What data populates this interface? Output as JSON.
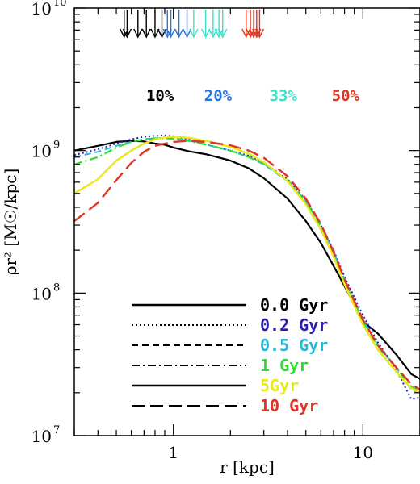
{
  "chart_data": {
    "type": "line",
    "title": "",
    "xlabel": "r [kpc]",
    "ylabel": "ρr² [M☉/kpc]",
    "xscale": "log",
    "yscale": "log",
    "xlim": [
      0.3,
      20
    ],
    "ylim": [
      10000000,
      10000000000
    ],
    "x_tick_labels": [
      {
        "value": 1,
        "label": "1"
      },
      {
        "value": 10,
        "label": "10"
      }
    ],
    "y_tick_labels": [
      {
        "value": 10000000,
        "base": "10",
        "exp": "7"
      },
      {
        "value": 100000000,
        "base": "10",
        "exp": "8"
      },
      {
        "value": 1000000000,
        "base": "10",
        "exp": "9"
      },
      {
        "value": 10000000000,
        "base": "10",
        "exp": "10"
      }
    ],
    "legend_placement": "bottom-center",
    "series": [
      {
        "name": "0.0 Gyr",
        "color": "#000000",
        "dash": "solid",
        "width": 2.2,
        "x": [
          0.3,
          0.4,
          0.5,
          0.6,
          0.7,
          0.8,
          0.9,
          1.0,
          1.2,
          1.5,
          2,
          2.5,
          3,
          4,
          5,
          6,
          7,
          8,
          10,
          12,
          15,
          18,
          20
        ],
        "y": [
          1000000000.0,
          1080000000.0,
          1150000000.0,
          1170000000.0,
          1160000000.0,
          1120000000.0,
          1100000000.0,
          1050000000.0,
          990000000.0,
          940000000.0,
          850000000.0,
          750000000.0,
          640000000.0,
          460000000.0,
          320000000.0,
          225000000.0,
          155000000.0,
          112000000.0,
          63000000.0,
          52000000.0,
          37000000.0,
          27000000.0,
          25000000.0
        ]
      },
      {
        "name": "0.2 Gyr",
        "color": "#2b1fb5",
        "dash": "dotted",
        "width": 2.0,
        "x": [
          0.3,
          0.4,
          0.5,
          0.6,
          0.7,
          0.8,
          0.9,
          1.0,
          1.2,
          1.5,
          2,
          2.5,
          3,
          4,
          5,
          6,
          7,
          8,
          10,
          12,
          15,
          18,
          20
        ],
        "y": [
          930000000.0,
          1020000000.0,
          1120000000.0,
          1200000000.0,
          1250000000.0,
          1270000000.0,
          1280000000.0,
          1260000000.0,
          1200000000.0,
          1100000000.0,
          1000000000.0,
          920000000.0,
          820000000.0,
          630000000.0,
          450000000.0,
          300000000.0,
          200000000.0,
          130000000.0,
          70000000.0,
          45000000.0,
          29000000.0,
          18000000.0,
          18500000.0
        ]
      },
      {
        "name": "0.5 Gyr",
        "color": "#25b8d8",
        "dash": "dashed",
        "width": 2.0,
        "x": [
          0.3,
          0.4,
          0.5,
          0.6,
          0.7,
          0.8,
          0.9,
          1.0,
          1.2,
          1.5,
          2,
          2.5,
          3,
          4,
          5,
          6,
          7,
          8,
          10,
          12,
          15,
          18,
          20
        ],
        "y": [
          900000000.0,
          980000000.0,
          1080000000.0,
          1150000000.0,
          1200000000.0,
          1220000000.0,
          1230000000.0,
          1220000000.0,
          1180000000.0,
          1100000000.0,
          1000000000.0,
          900000000.0,
          800000000.0,
          610000000.0,
          440000000.0,
          300000000.0,
          195000000.0,
          125000000.0,
          65000000.0,
          43000000.0,
          30000000.0,
          21000000.0,
          20000000.0
        ]
      },
      {
        "name": "1 Gyr",
        "color": "#2fdc2f",
        "dash": "dashdot",
        "width": 2.2,
        "x": [
          0.3,
          0.4,
          0.5,
          0.6,
          0.7,
          0.8,
          0.9,
          1.0,
          1.2,
          1.5,
          2,
          2.5,
          3,
          4,
          5,
          6,
          7,
          8,
          10,
          12,
          15,
          18,
          20
        ],
        "y": [
          800000000.0,
          900000000.0,
          1050000000.0,
          1150000000.0,
          1200000000.0,
          1220000000.0,
          1220000000.0,
          1210000000.0,
          1170000000.0,
          1100000000.0,
          1000000000.0,
          900000000.0,
          810000000.0,
          620000000.0,
          440000000.0,
          295000000.0,
          190000000.0,
          120000000.0,
          63000000.0,
          42000000.0,
          30000000.0,
          22000000.0,
          21000000.0
        ]
      },
      {
        "name": "5Gyr",
        "color": "#e8e81a",
        "dash": "solid",
        "width": 2.4,
        "x": [
          0.3,
          0.4,
          0.5,
          0.6,
          0.7,
          0.8,
          0.9,
          1.0,
          1.2,
          1.5,
          2,
          2.5,
          3,
          4,
          5,
          6,
          7,
          8,
          10,
          12,
          15,
          18,
          20
        ],
        "y": [
          500000000.0,
          630000000.0,
          850000000.0,
          1000000000.0,
          1120000000.0,
          1200000000.0,
          1240000000.0,
          1250000000.0,
          1230000000.0,
          1170000000.0,
          1060000000.0,
          950000000.0,
          830000000.0,
          610000000.0,
          420000000.0,
          280000000.0,
          180000000.0,
          115000000.0,
          60000000.0,
          40000000.0,
          28000000.0,
          21500000.0,
          20000000.0
        ]
      },
      {
        "name": "10 Gyr",
        "color": "#e03522",
        "dash": "longdash",
        "width": 2.4,
        "x": [
          0.3,
          0.4,
          0.5,
          0.6,
          0.7,
          0.8,
          0.9,
          1.0,
          1.2,
          1.5,
          2,
          2.5,
          3,
          4,
          5,
          6,
          7,
          8,
          10,
          12,
          15,
          18,
          20
        ],
        "y": [
          320000000.0,
          430000000.0,
          620000000.0,
          820000000.0,
          980000000.0,
          1080000000.0,
          1120000000.0,
          1150000000.0,
          1170000000.0,
          1150000000.0,
          1090000000.0,
          1000000000.0,
          890000000.0,
          660000000.0,
          460000000.0,
          305000000.0,
          195000000.0,
          125000000.0,
          65000000.0,
          43000000.0,
          30000000.0,
          23000000.0,
          21000000.0
        ]
      }
    ],
    "annotations": [
      {
        "text": "10%",
        "color": "#000000",
        "x": 0.85
      },
      {
        "text": "20%",
        "color": "#2a74de",
        "x": 1.72
      },
      {
        "text": "33%",
        "color": "#3fe0c8",
        "x": 3.8
      },
      {
        "text": "50%",
        "color": "#e03522",
        "x": 8.1
      }
    ],
    "arrows": [
      {
        "color": "#000000",
        "x": [
          0.55,
          0.57,
          0.65,
          0.72,
          0.8,
          0.87
        ]
      },
      {
        "color": "#2a74de",
        "x": [
          0.93,
          0.97,
          1.07,
          1.18
        ]
      },
      {
        "color": "#3fe0c8",
        "x": [
          1.28,
          1.48,
          1.62,
          1.74,
          1.82
        ]
      },
      {
        "color": "#e03522",
        "x": [
          2.42,
          2.55,
          2.65,
          2.75,
          2.85
        ]
      }
    ]
  }
}
